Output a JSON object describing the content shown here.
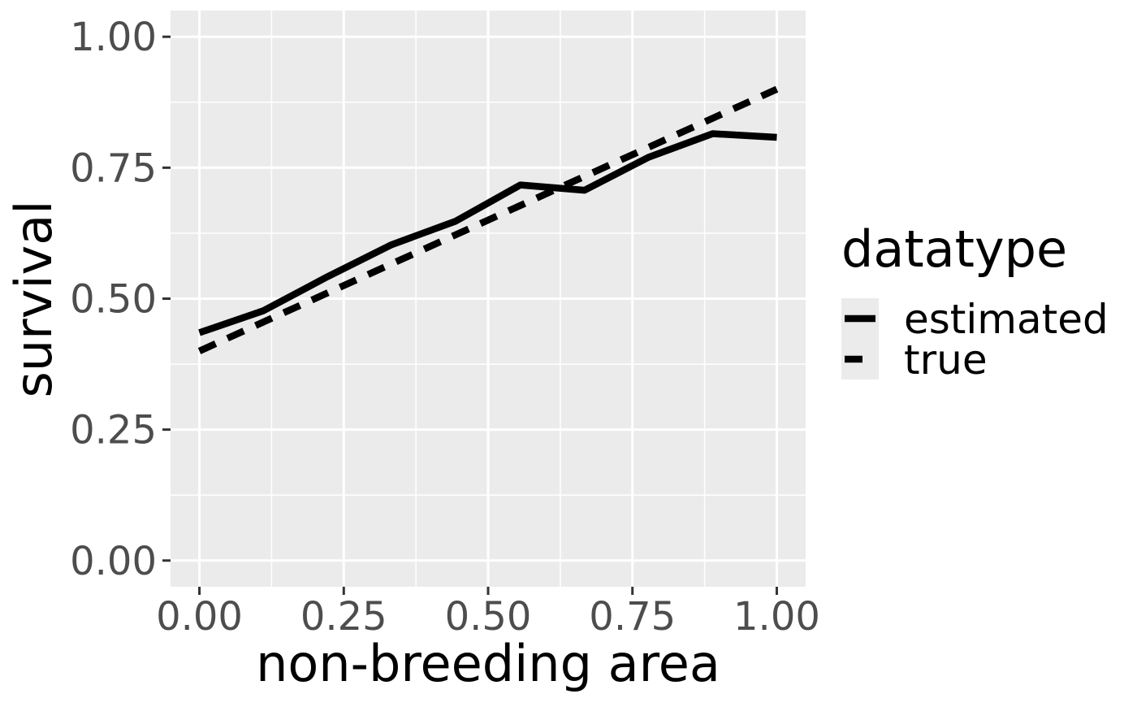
{
  "chart_data": {
    "type": "line",
    "title": "",
    "xlabel": "non-breeding area",
    "ylabel": "survival",
    "xlim": [
      -0.05,
      1.05
    ],
    "ylim": [
      -0.05,
      1.05
    ],
    "x_ticks": [
      0,
      0.25,
      0.5,
      0.75,
      1
    ],
    "x_tick_labels": [
      "0.00",
      "0.25",
      "0.50",
      "0.75",
      "1.00"
    ],
    "y_ticks": [
      0,
      0.25,
      0.5,
      0.75,
      1
    ],
    "y_tick_labels": [
      "0.00",
      "0.25",
      "0.50",
      "0.75",
      "1.00"
    ],
    "grid": true,
    "background_color": "#ebebeb",
    "grid_color": "#ffffff",
    "line_color": "#000000",
    "legend": {
      "title": "datatype",
      "position": "right"
    },
    "series": [
      {
        "name": "estimated",
        "linetype": "solid",
        "x": [
          0,
          0.111,
          0.222,
          0.333,
          0.444,
          0.556,
          0.667,
          0.778,
          0.889,
          1.0
        ],
        "y": [
          0.435,
          0.477,
          0.542,
          0.603,
          0.648,
          0.717,
          0.707,
          0.77,
          0.815,
          0.808
        ]
      },
      {
        "name": "true",
        "linetype": "dashed",
        "x": [
          0,
          1.0
        ],
        "y": [
          0.4,
          0.9
        ]
      }
    ]
  }
}
